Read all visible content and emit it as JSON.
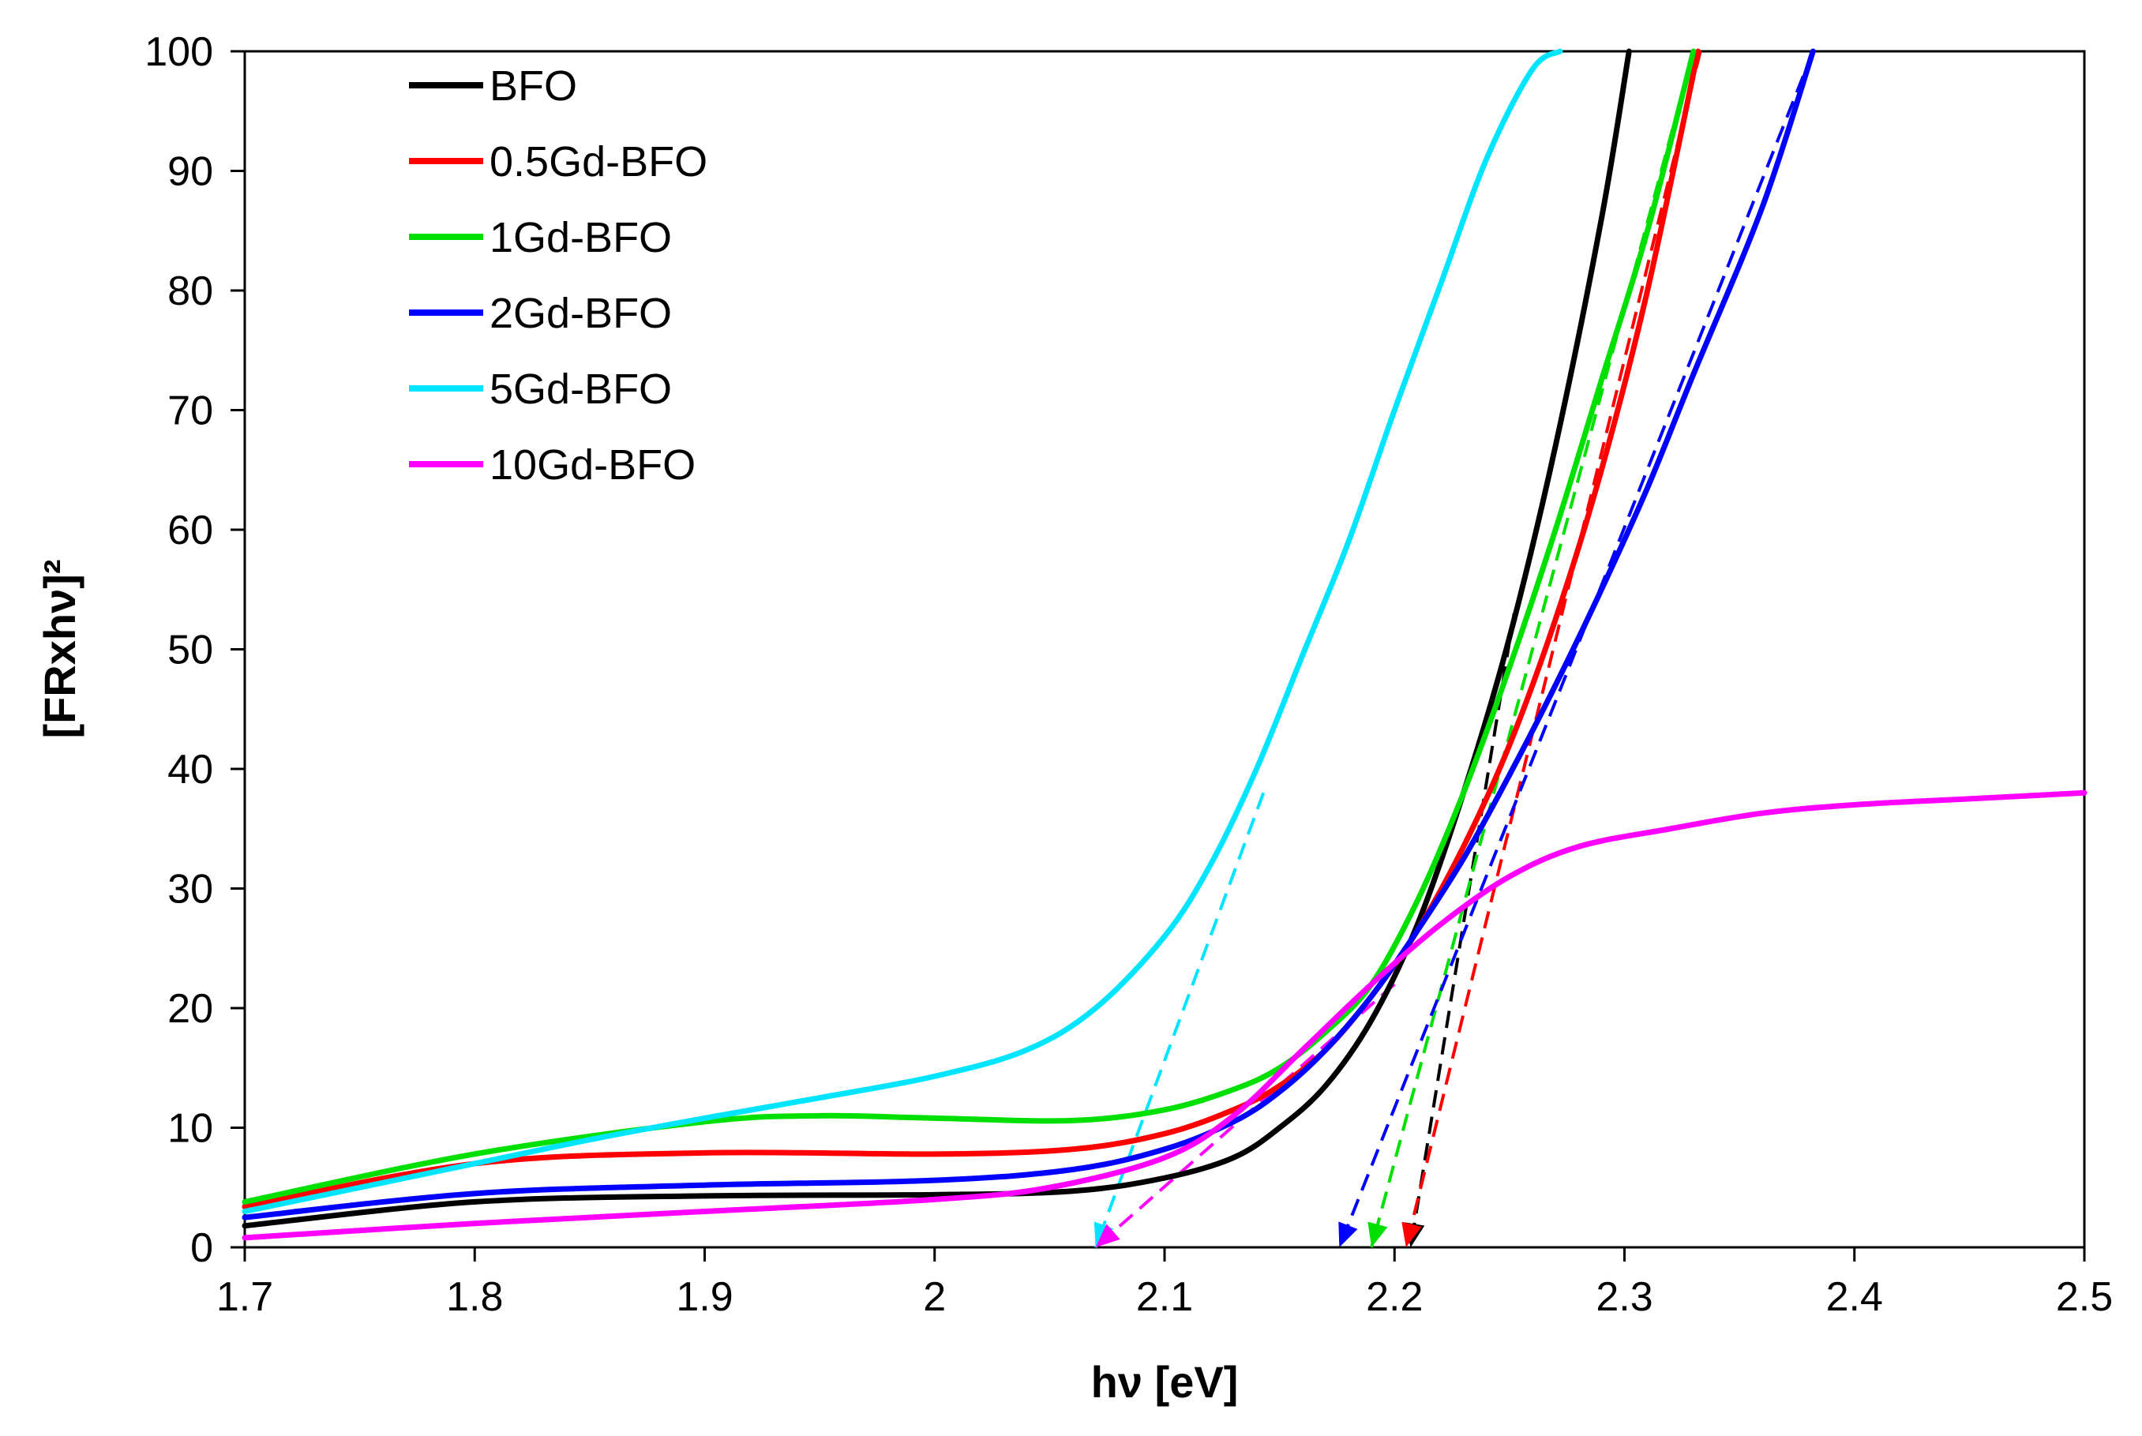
{
  "chart_data": {
    "type": "line",
    "title": "",
    "xlabel": "hν [eV]",
    "ylabel": "[FRxhν]²",
    "xlim": [
      1.7,
      2.5
    ],
    "ylim": [
      0,
      100
    ],
    "xticks": [
      1.7,
      1.8,
      1.9,
      2.0,
      2.1,
      2.2,
      2.3,
      2.4,
      2.5
    ],
    "xtick_labels": [
      "1.7",
      "1.8",
      "1.9",
      "2",
      "2.1",
      "2.2",
      "2.3",
      "2.4",
      "2.5"
    ],
    "yticks": [
      0,
      10,
      20,
      30,
      40,
      50,
      60,
      70,
      80,
      90,
      100
    ],
    "ytick_labels": [
      "0",
      "10",
      "20",
      "30",
      "40",
      "50",
      "60",
      "70",
      "80",
      "90",
      "100"
    ],
    "grid": false,
    "legend_position": "top-left",
    "series": [
      {
        "name": "BFO",
        "color": "#000000",
        "x": [
          1.7,
          1.8,
          1.9,
          2.0,
          2.06,
          2.1,
          2.13,
          2.15,
          2.17,
          2.19,
          2.21,
          2.23,
          2.25,
          2.27,
          2.29,
          2.302
        ],
        "y": [
          1.8,
          3.8,
          4.3,
          4.4,
          4.7,
          5.8,
          7.5,
          10.0,
          13.5,
          19.0,
          27.0,
          38.0,
          51.0,
          67.0,
          86.0,
          100.0
        ]
      },
      {
        "name": "0.5Gd-BFO",
        "color": "#ff0000",
        "x": [
          1.7,
          1.8,
          1.9,
          2.0,
          2.06,
          2.1,
          2.13,
          2.15,
          2.17,
          2.19,
          2.21,
          2.23,
          2.25,
          2.27,
          2.29,
          2.31,
          2.332
        ],
        "y": [
          3.4,
          7.0,
          7.9,
          7.8,
          8.2,
          9.5,
          11.5,
          13.5,
          16.5,
          21.0,
          26.5,
          33.5,
          42.0,
          52.5,
          65.0,
          80.0,
          100.0
        ]
      },
      {
        "name": "1Gd-BFO",
        "color": "#00e000",
        "x": [
          1.7,
          1.8,
          1.9,
          1.95,
          2.0,
          2.06,
          2.1,
          2.13,
          2.15,
          2.17,
          2.19,
          2.21,
          2.23,
          2.25,
          2.27,
          2.29,
          2.31,
          2.33
        ],
        "y": [
          3.8,
          7.8,
          10.5,
          11.0,
          10.8,
          10.6,
          11.5,
          13.2,
          15.0,
          18.0,
          22.0,
          29.0,
          38.0,
          48.5,
          60.0,
          72.5,
          85.0,
          100.0
        ]
      },
      {
        "name": "2Gd-BFO",
        "color": "#0000ff",
        "x": [
          1.7,
          1.8,
          1.9,
          2.0,
          2.06,
          2.1,
          2.13,
          2.15,
          2.17,
          2.19,
          2.21,
          2.23,
          2.25,
          2.27,
          2.29,
          2.31,
          2.33,
          2.36,
          2.382
        ],
        "y": [
          2.5,
          4.5,
          5.2,
          5.6,
          6.5,
          8.2,
          10.5,
          13.0,
          16.5,
          21.0,
          26.5,
          32.5,
          39.5,
          47.0,
          55.0,
          63.5,
          73.0,
          87.0,
          100.0
        ]
      },
      {
        "name": "5Gd-BFO",
        "color": "#00e5ff",
        "x": [
          1.7,
          1.8,
          1.85,
          1.9,
          1.95,
          2.0,
          2.04,
          2.07,
          2.1,
          2.12,
          2.14,
          2.16,
          2.18,
          2.2,
          2.22,
          2.24,
          2.26,
          2.272
        ],
        "y": [
          3.0,
          7.0,
          9.0,
          10.8,
          12.5,
          14.3,
          16.5,
          20.0,
          26.0,
          32.0,
          40.0,
          49.5,
          59.0,
          70.0,
          80.5,
          91.0,
          98.5,
          100.0
        ]
      },
      {
        "name": "10Gd-BFO",
        "color": "#ff00ff",
        "x": [
          1.7,
          1.8,
          1.9,
          2.0,
          2.05,
          2.1,
          2.13,
          2.16,
          2.19,
          2.22,
          2.25,
          2.28,
          2.32,
          2.36,
          2.4,
          2.45,
          2.5
        ],
        "y": [
          0.8,
          2.0,
          3.0,
          4.0,
          5.0,
          7.5,
          11.0,
          16.5,
          22.0,
          27.0,
          31.0,
          33.5,
          35.0,
          36.3,
          37.0,
          37.5,
          38.0
        ]
      }
    ],
    "tangent_lines": [
      {
        "series": "BFO",
        "color": "#000000",
        "x": [
          2.207,
          2.252
        ],
        "y": [
          0,
          53
        ]
      },
      {
        "series": "0.5Gd-BFO",
        "color": "#ff0000",
        "x": [
          2.205,
          2.333
        ],
        "y": [
          0,
          100
        ]
      },
      {
        "series": "1Gd-BFO",
        "color": "#00e000",
        "x": [
          2.19,
          2.33
        ],
        "y": [
          0,
          100
        ]
      },
      {
        "series": "2Gd-BFO",
        "color": "#0000ff",
        "x": [
          2.176,
          2.382
        ],
        "y": [
          0,
          100
        ]
      },
      {
        "series": "5Gd-BFO",
        "color": "#00e5ff",
        "x": [
          2.07,
          2.143
        ],
        "y": [
          0,
          38
        ]
      },
      {
        "series": "10Gd-BFO",
        "color": "#ff00ff",
        "x": [
          2.07,
          2.2
        ],
        "y": [
          0,
          22
        ]
      }
    ]
  }
}
